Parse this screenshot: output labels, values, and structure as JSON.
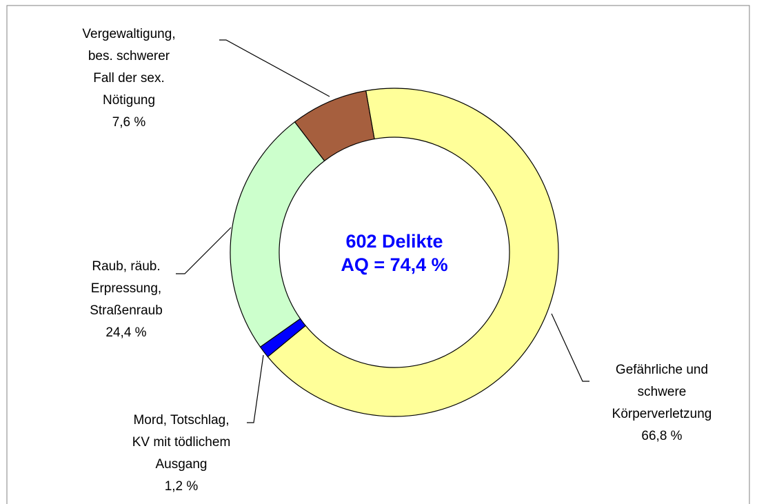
{
  "chart_data": {
    "type": "donut",
    "categories": [
      [
        "Gefährliche und",
        "schwere",
        "Körperverletzung"
      ],
      [
        "Mord, Totschlag,",
        "KV mit tödlichem",
        "Ausgang"
      ],
      [
        "Raub, räub.",
        "Erpressung,",
        "Straßenraub"
      ],
      [
        "Vergewaltigung,",
        "bes. schwerer",
        "Fall der sex.",
        "Nötigung"
      ]
    ],
    "values": [
      66.8,
      1.2,
      24.4,
      7.6
    ],
    "value_labels": [
      "66,8 %",
      "1,2 %",
      "24,4 %",
      "7,6 %"
    ],
    "colors": [
      "#ffff99",
      "#0000ff",
      "#ccffcc",
      "#a65f3e"
    ],
    "annotations": [
      "602 Delikte",
      "AQ = 74,4 %"
    ]
  }
}
